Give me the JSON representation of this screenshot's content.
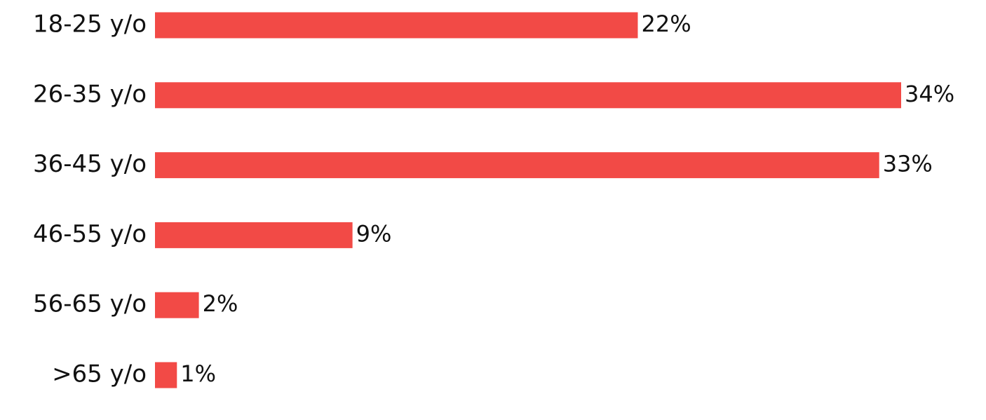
{
  "chart_data": {
    "type": "bar",
    "orientation": "horizontal",
    "categories": [
      "18-25 y/o",
      "26-35 y/o",
      "36-45 y/o",
      "46-55 y/o",
      "56-65 y/o",
      ">65 y/o"
    ],
    "values": [
      22,
      34,
      33,
      9,
      2,
      1
    ],
    "value_labels": [
      "22%",
      "34%",
      "33%",
      "9%",
      "2%",
      "1%"
    ],
    "color": "#f24a46"
  }
}
